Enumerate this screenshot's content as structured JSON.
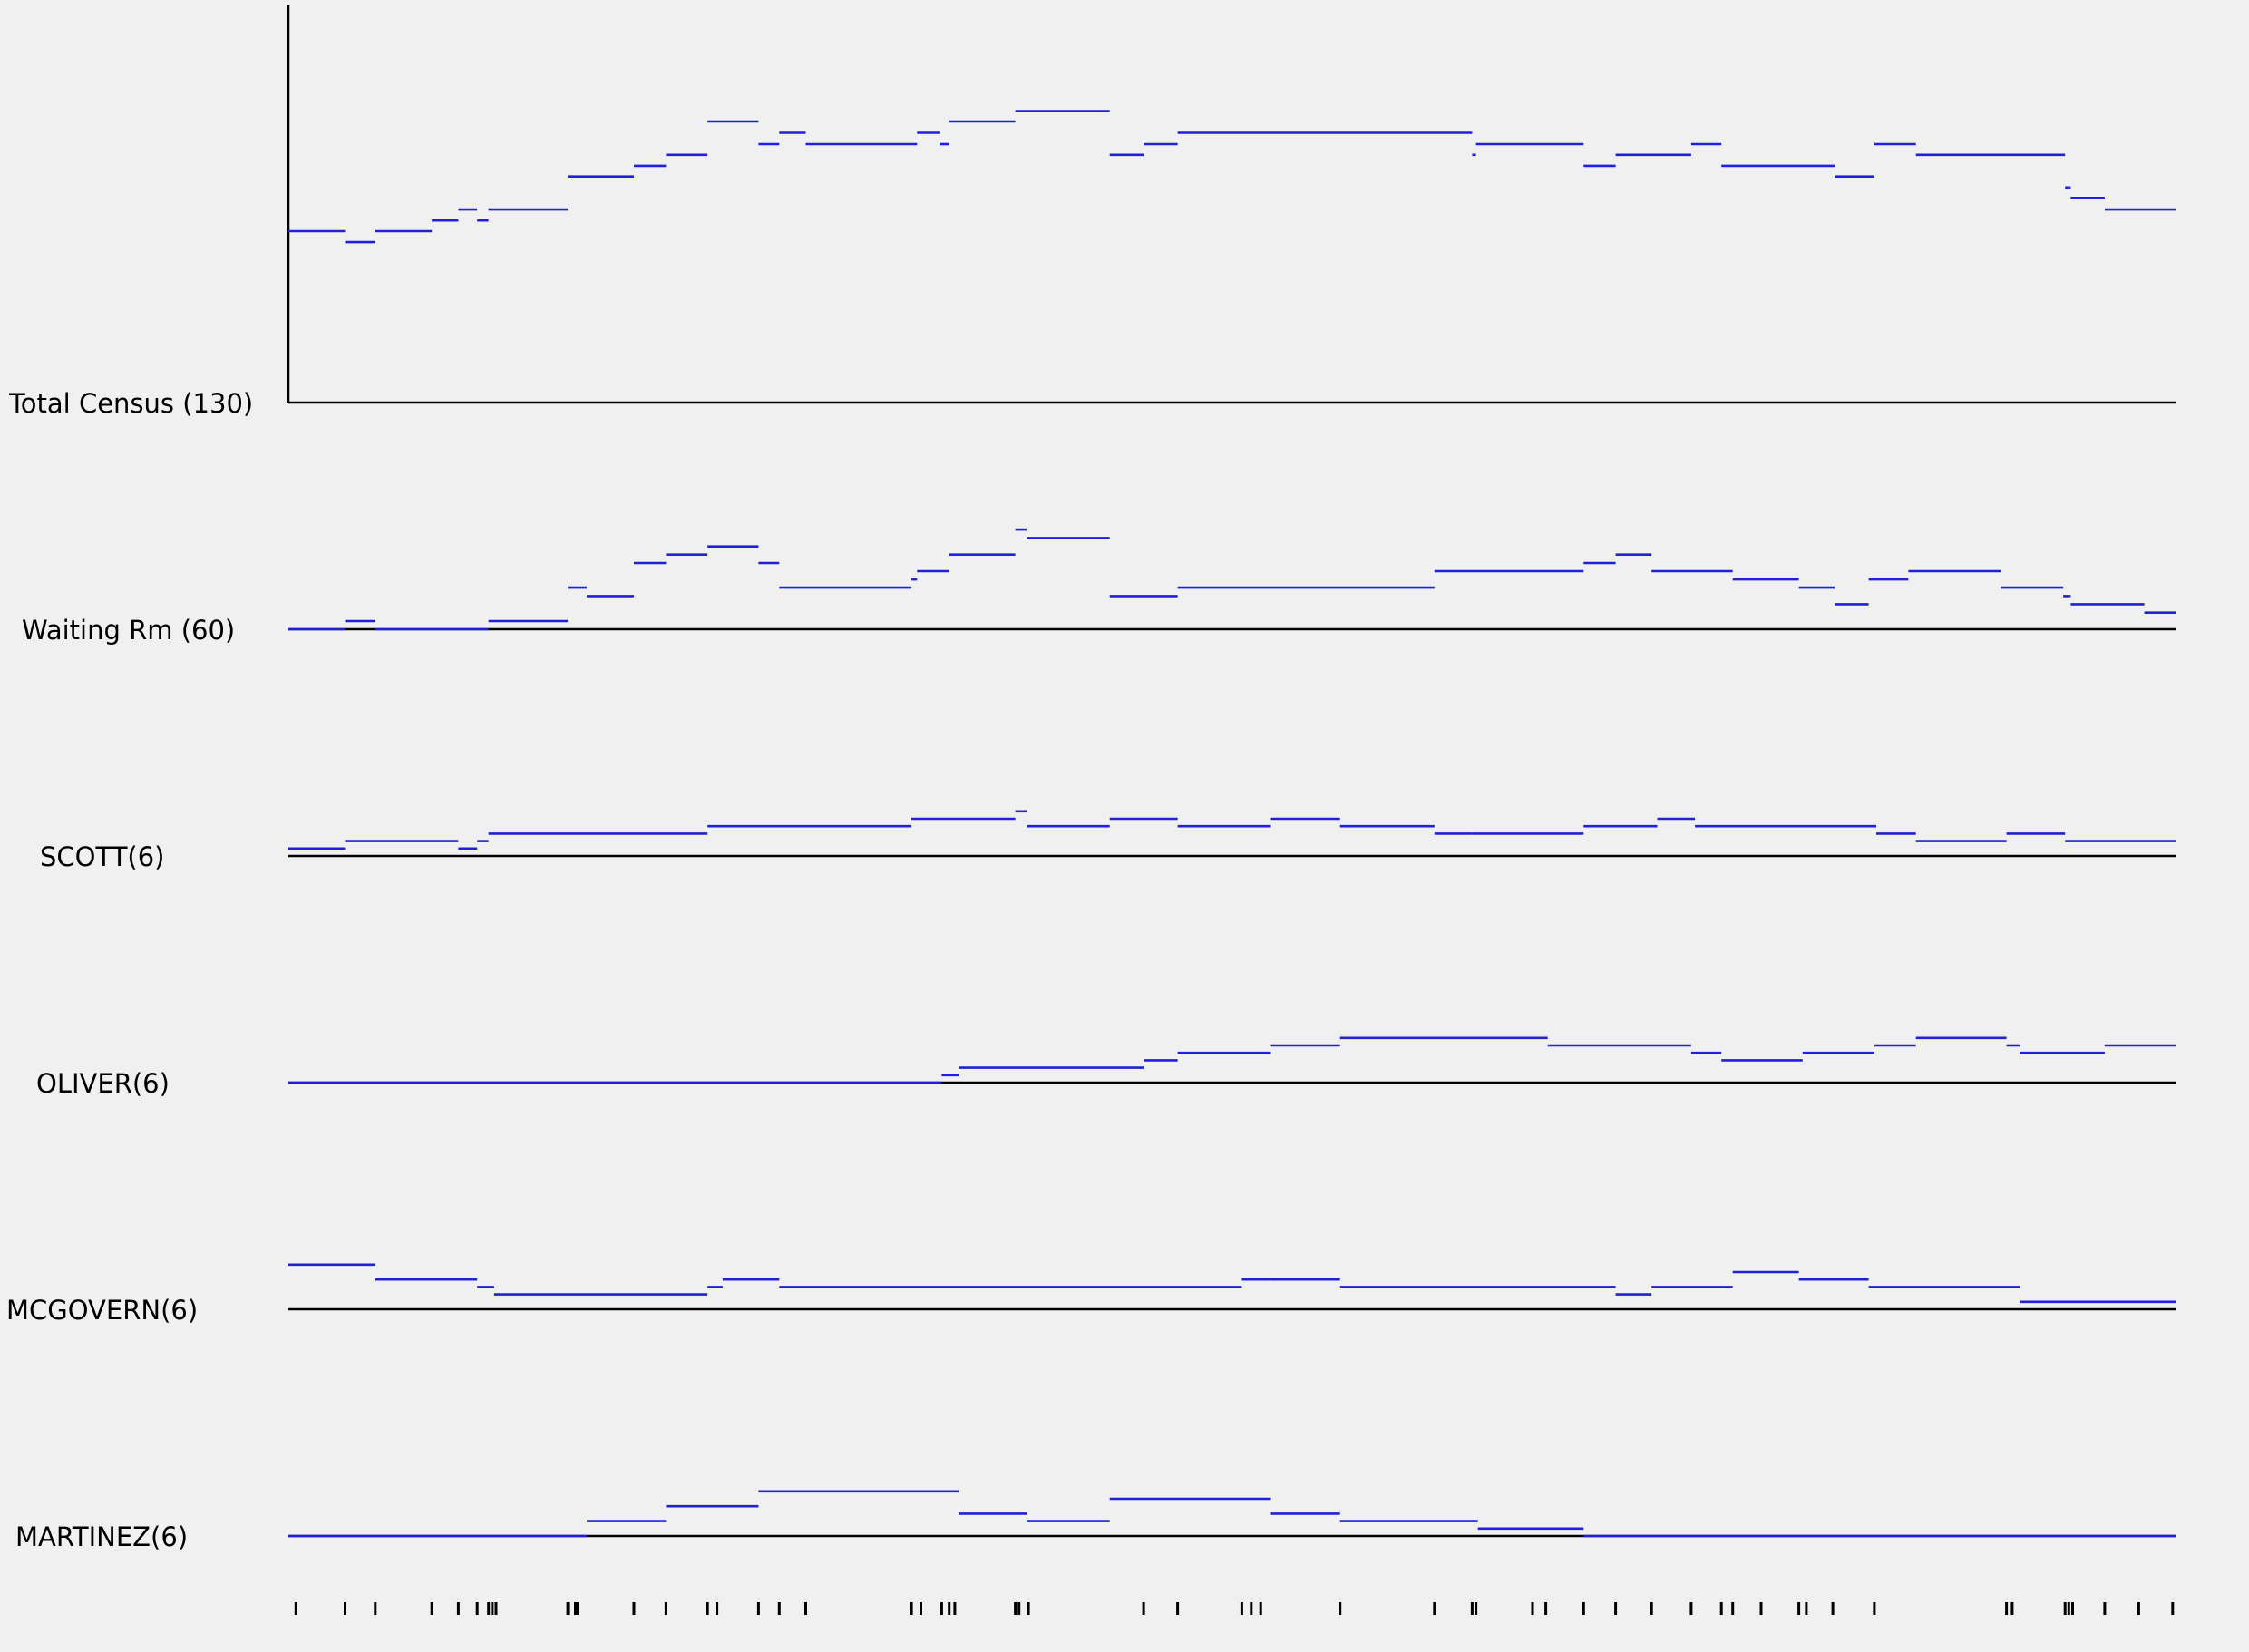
{
  "colors": {
    "series": "#2020d8",
    "axis": "#000000",
    "background": "#f0f0f0"
  },
  "chart_data": [
    {
      "type": "line",
      "step": true,
      "label": "Total Census (130)",
      "ylim": [
        0,
        130
      ],
      "x_range": [
        0,
        1
      ],
      "steps": [
        [
          0.0,
          0.03,
          56.1
        ],
        [
          0.03,
          0.046,
          52.5
        ],
        [
          0.046,
          0.076,
          56.1
        ],
        [
          0.076,
          0.09,
          59.6
        ],
        [
          0.09,
          0.1,
          63.2
        ],
        [
          0.1,
          0.106,
          59.6
        ],
        [
          0.106,
          0.148,
          63.2
        ],
        [
          0.148,
          0.183,
          74.0
        ],
        [
          0.183,
          0.2,
          77.5
        ],
        [
          0.2,
          0.222,
          81.1
        ],
        [
          0.222,
          0.249,
          92.0
        ],
        [
          0.249,
          0.26,
          84.6
        ],
        [
          0.26,
          0.274,
          88.3
        ],
        [
          0.274,
          0.333,
          84.6
        ],
        [
          0.333,
          0.345,
          88.3
        ],
        [
          0.345,
          0.35,
          84.6
        ],
        [
          0.35,
          0.385,
          92.0
        ],
        [
          0.385,
          0.435,
          95.4
        ],
        [
          0.435,
          0.453,
          81.1
        ],
        [
          0.453,
          0.471,
          84.6
        ],
        [
          0.471,
          0.627,
          88.3
        ],
        [
          0.627,
          0.629,
          81.1
        ],
        [
          0.629,
          0.686,
          84.6
        ],
        [
          0.686,
          0.703,
          77.5
        ],
        [
          0.703,
          0.743,
          81.1
        ],
        [
          0.743,
          0.759,
          84.6
        ],
        [
          0.759,
          0.819,
          77.5
        ],
        [
          0.819,
          0.84,
          74.0
        ],
        [
          0.84,
          0.862,
          84.6
        ],
        [
          0.862,
          0.941,
          81.1
        ],
        [
          0.941,
          0.944,
          70.4
        ],
        [
          0.944,
          0.962,
          67.0
        ],
        [
          0.962,
          1.0,
          63.2
        ]
      ]
    },
    {
      "type": "line",
      "step": true,
      "label": "Waiting Rm (60)",
      "ylim": [
        0,
        60
      ],
      "x_range": [
        0,
        1
      ],
      "steps": [
        [
          0.0,
          0.03,
          0
        ],
        [
          0.03,
          0.046,
          3.3
        ],
        [
          0.046,
          0.106,
          0
        ],
        [
          0.106,
          0.148,
          3.3
        ],
        [
          0.148,
          0.158,
          16.8
        ],
        [
          0.158,
          0.183,
          13.4
        ],
        [
          0.183,
          0.2,
          26.7
        ],
        [
          0.2,
          0.222,
          30.1
        ],
        [
          0.222,
          0.249,
          33.4
        ],
        [
          0.249,
          0.26,
          26.7
        ],
        [
          0.26,
          0.33,
          16.8
        ],
        [
          0.33,
          0.333,
          20.1
        ],
        [
          0.333,
          0.35,
          23.4
        ],
        [
          0.35,
          0.385,
          30.1
        ],
        [
          0.385,
          0.391,
          40.2
        ],
        [
          0.391,
          0.435,
          36.8
        ],
        [
          0.435,
          0.471,
          13.4
        ],
        [
          0.471,
          0.607,
          16.8
        ],
        [
          0.607,
          0.686,
          23.4
        ],
        [
          0.686,
          0.703,
          26.7
        ],
        [
          0.703,
          0.722,
          30.1
        ],
        [
          0.722,
          0.765,
          23.4
        ],
        [
          0.765,
          0.8,
          20.1
        ],
        [
          0.8,
          0.819,
          16.8
        ],
        [
          0.819,
          0.837,
          10.1
        ],
        [
          0.837,
          0.858,
          20.1
        ],
        [
          0.858,
          0.907,
          23.4
        ],
        [
          0.907,
          0.94,
          16.8
        ],
        [
          0.94,
          0.944,
          13.4
        ],
        [
          0.944,
          0.983,
          10.1
        ],
        [
          0.983,
          1.0,
          6.7
        ]
      ]
    },
    {
      "type": "line",
      "step": true,
      "label": "SCOTT(6)",
      "ylim": [
        0,
        6
      ],
      "x_range": [
        0,
        1
      ],
      "steps": [
        [
          0.0,
          0.03,
          0.3
        ],
        [
          0.03,
          0.09,
          0.6
        ],
        [
          0.09,
          0.1,
          0.3
        ],
        [
          0.1,
          0.106,
          0.6
        ],
        [
          0.106,
          0.222,
          0.9
        ],
        [
          0.222,
          0.33,
          1.2
        ],
        [
          0.33,
          0.385,
          1.5
        ],
        [
          0.385,
          0.391,
          1.8
        ],
        [
          0.391,
          0.435,
          1.2
        ],
        [
          0.435,
          0.471,
          1.5
        ],
        [
          0.471,
          0.52,
          1.2
        ],
        [
          0.52,
          0.557,
          1.5
        ],
        [
          0.557,
          0.607,
          1.2
        ],
        [
          0.607,
          0.627,
          0.9
        ],
        [
          0.627,
          0.686,
          0.9
        ],
        [
          0.686,
          0.725,
          1.2
        ],
        [
          0.725,
          0.745,
          1.5
        ],
        [
          0.745,
          0.841,
          1.2
        ],
        [
          0.841,
          0.862,
          0.9
        ],
        [
          0.862,
          0.91,
          0.6
        ],
        [
          0.91,
          0.941,
          0.9
        ],
        [
          0.941,
          1.0,
          0.6
        ]
      ]
    },
    {
      "type": "line",
      "step": true,
      "label": "OLIVER(6)",
      "ylim": [
        0,
        6
      ],
      "x_range": [
        0,
        1
      ],
      "steps": [
        [
          0.0,
          0.346,
          0
        ],
        [
          0.346,
          0.355,
          0.3
        ],
        [
          0.355,
          0.453,
          0.6
        ],
        [
          0.453,
          0.471,
          0.9
        ],
        [
          0.471,
          0.52,
          1.2
        ],
        [
          0.52,
          0.557,
          1.5
        ],
        [
          0.557,
          0.667,
          1.8
        ],
        [
          0.667,
          0.743,
          1.5
        ],
        [
          0.743,
          0.759,
          1.2
        ],
        [
          0.759,
          0.802,
          0.9
        ],
        [
          0.802,
          0.84,
          1.2
        ],
        [
          0.84,
          0.862,
          1.5
        ],
        [
          0.862,
          0.91,
          1.8
        ],
        [
          0.91,
          0.917,
          1.5
        ],
        [
          0.917,
          0.962,
          1.2
        ],
        [
          0.962,
          1.0,
          1.5
        ]
      ]
    },
    {
      "type": "line",
      "step": true,
      "label": "MCGOVERN(6)",
      "ylim": [
        0,
        6
      ],
      "x_range": [
        0,
        1
      ],
      "steps": [
        [
          0.0,
          0.046,
          1.8
        ],
        [
          0.046,
          0.1,
          1.2
        ],
        [
          0.1,
          0.109,
          0.9
        ],
        [
          0.109,
          0.158,
          0.6
        ],
        [
          0.158,
          0.222,
          0.6
        ],
        [
          0.222,
          0.23,
          0.9
        ],
        [
          0.23,
          0.26,
          1.2
        ],
        [
          0.26,
          0.505,
          0.9
        ],
        [
          0.505,
          0.52,
          1.2
        ],
        [
          0.52,
          0.557,
          1.2
        ],
        [
          0.557,
          0.703,
          0.9
        ],
        [
          0.703,
          0.722,
          0.6
        ],
        [
          0.722,
          0.765,
          0.9
        ],
        [
          0.765,
          0.8,
          1.5
        ],
        [
          0.8,
          0.837,
          1.2
        ],
        [
          0.837,
          0.917,
          0.9
        ],
        [
          0.917,
          1.0,
          0.3
        ]
      ]
    },
    {
      "type": "line",
      "step": true,
      "label": "MARTINEZ(6)",
      "ylim": [
        0,
        6
      ],
      "x_range": [
        0,
        1
      ],
      "steps": [
        [
          0.0,
          0.158,
          0
        ],
        [
          0.158,
          0.2,
          0.6
        ],
        [
          0.2,
          0.249,
          1.2
        ],
        [
          0.249,
          0.355,
          1.8
        ],
        [
          0.355,
          0.391,
          0.9
        ],
        [
          0.391,
          0.435,
          0.6
        ],
        [
          0.435,
          0.52,
          1.5
        ],
        [
          0.52,
          0.557,
          0.9
        ],
        [
          0.557,
          0.63,
          0.6
        ],
        [
          0.63,
          0.686,
          0.3
        ],
        [
          0.686,
          1.0,
          0
        ]
      ]
    }
  ],
  "event_ticks": [
    0.004,
    0.03,
    0.046,
    0.076,
    0.09,
    0.1,
    0.106,
    0.108,
    0.11,
    0.148,
    0.152,
    0.153,
    0.183,
    0.2,
    0.222,
    0.227,
    0.249,
    0.26,
    0.274,
    0.33,
    0.335,
    0.346,
    0.35,
    0.353,
    0.385,
    0.387,
    0.392,
    0.453,
    0.471,
    0.505,
    0.51,
    0.515,
    0.557,
    0.607,
    0.627,
    0.629,
    0.659,
    0.666,
    0.686,
    0.703,
    0.722,
    0.743,
    0.759,
    0.765,
    0.78,
    0.8,
    0.804,
    0.818,
    0.84,
    0.91,
    0.913,
    0.941,
    0.943,
    0.945,
    0.962,
    0.98,
    0.998
  ]
}
